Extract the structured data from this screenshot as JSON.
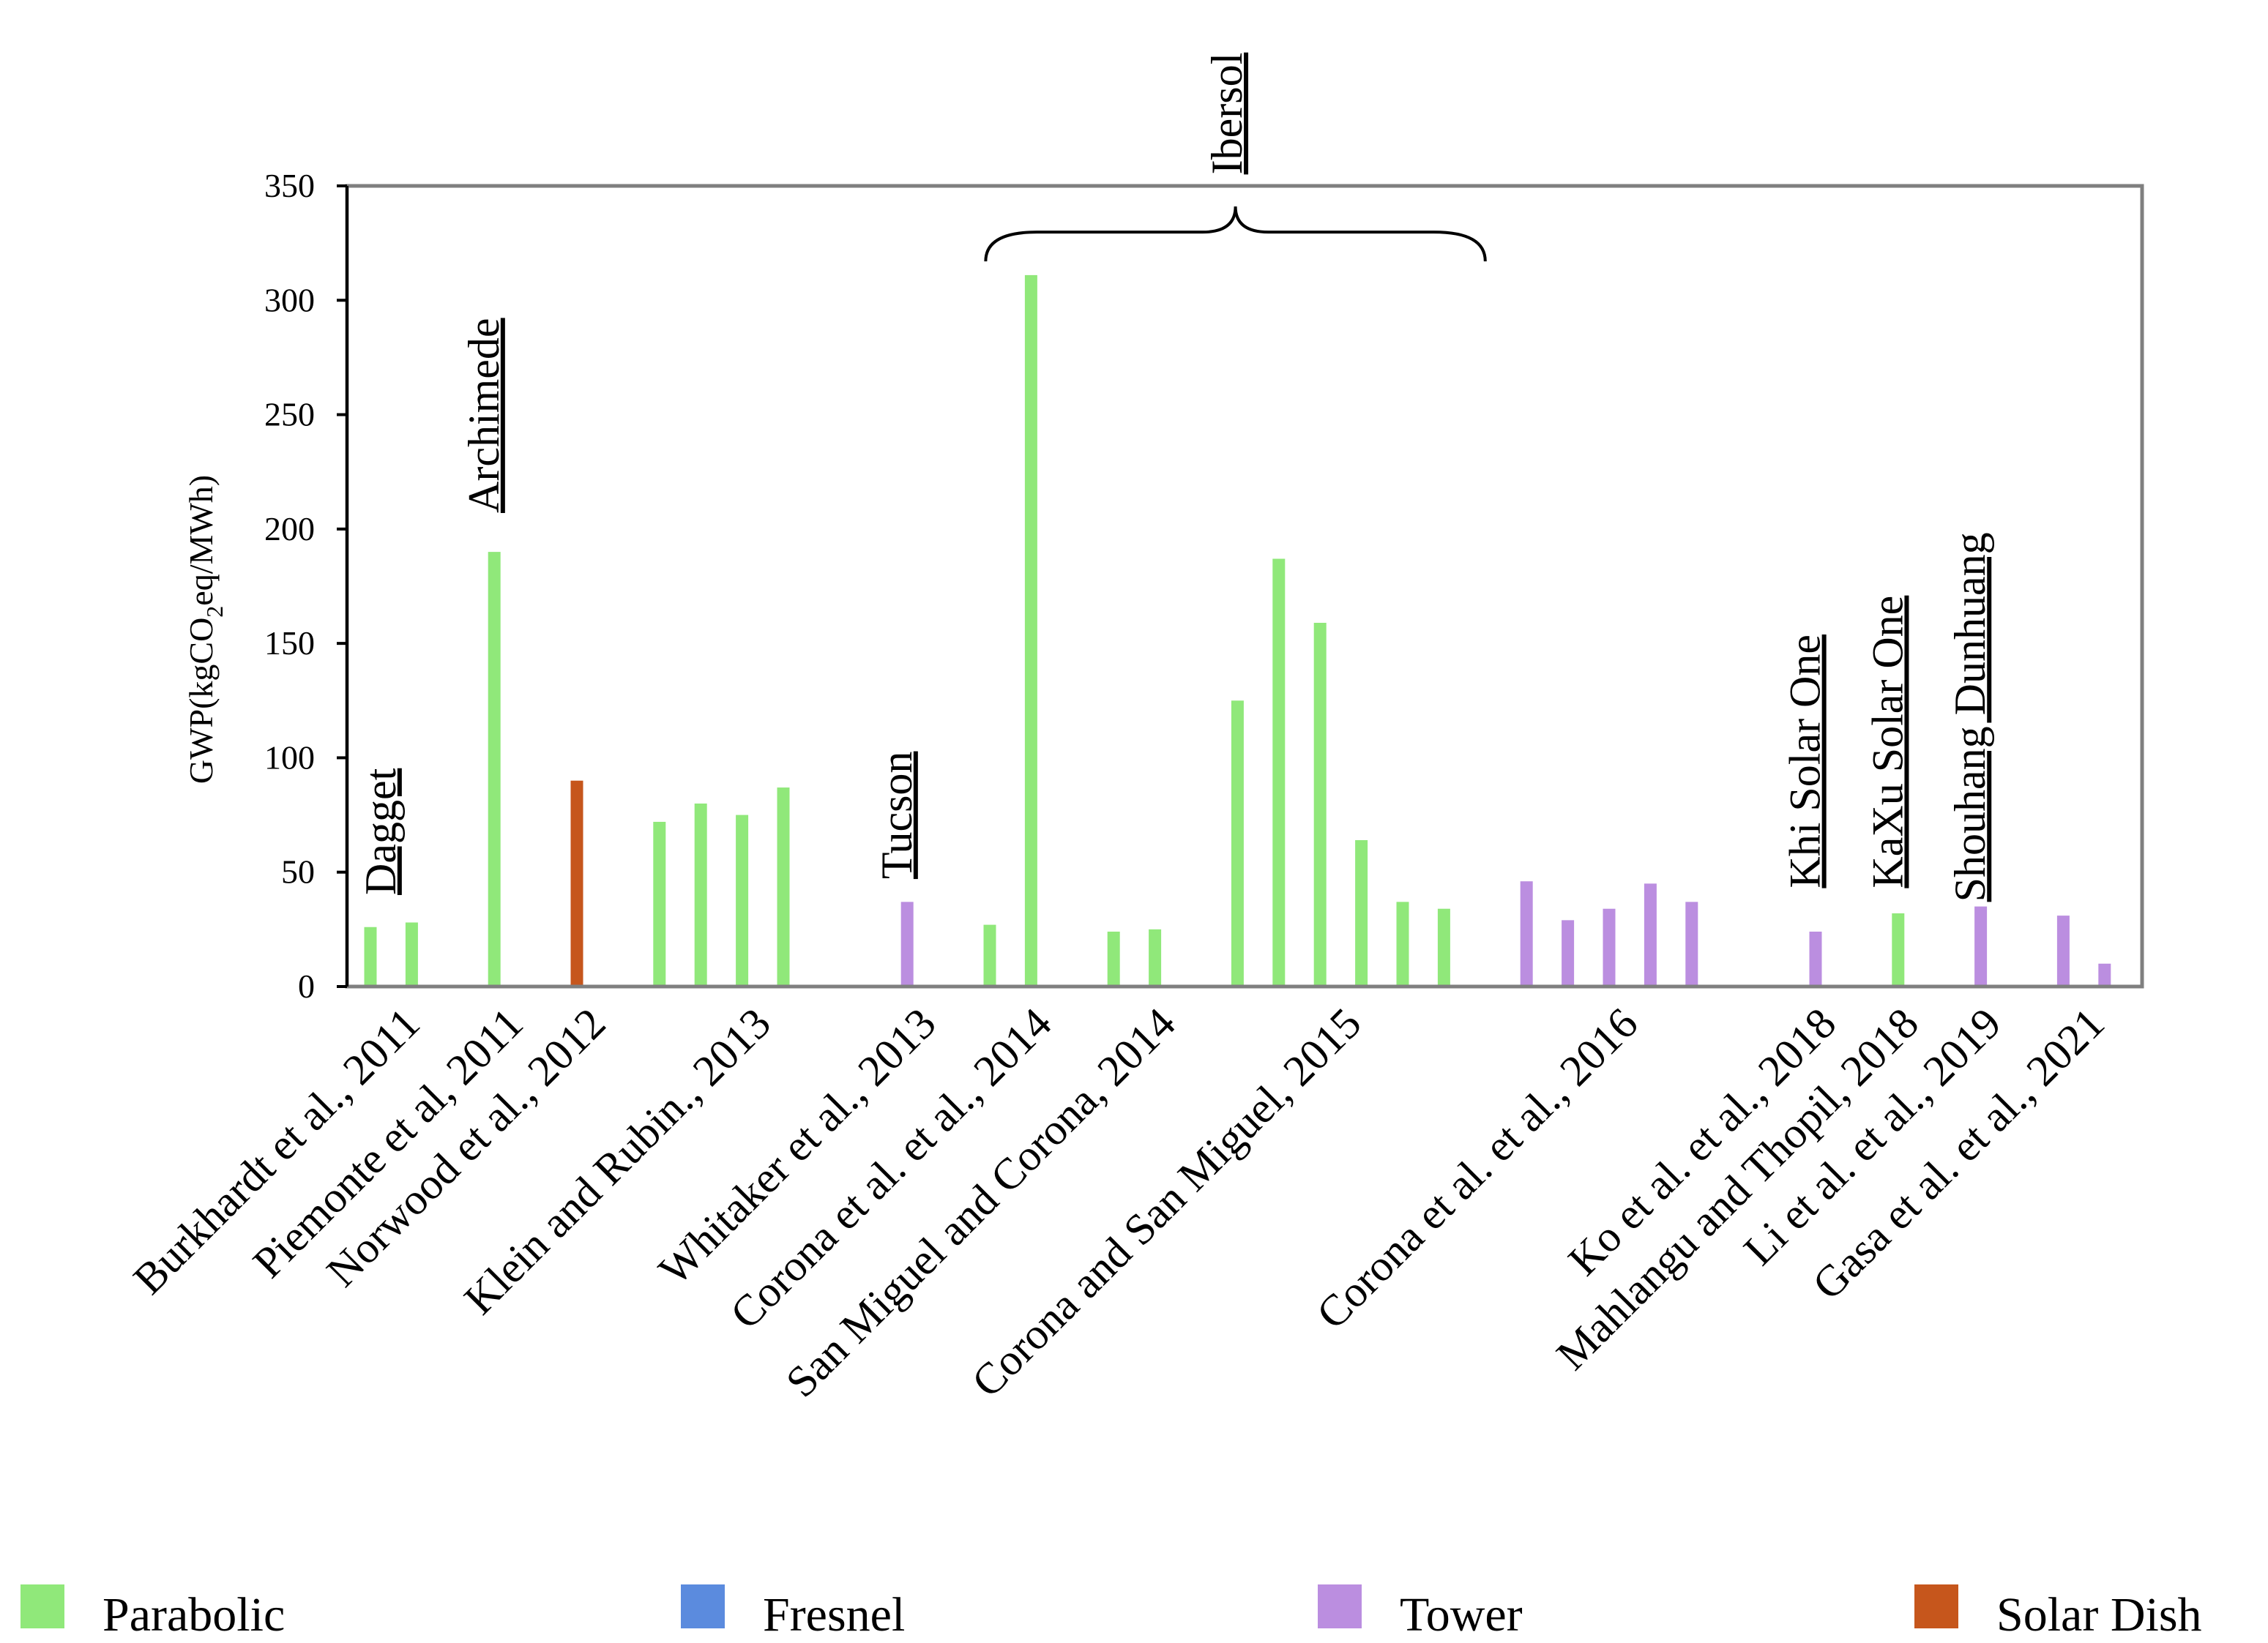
{
  "chart_data": {
    "type": "bar",
    "title": "",
    "xlabel": "",
    "ylabel": "GWP(kgCO2eq/MWh)",
    "ylabel_parts": {
      "pre": "GWP(kgCO",
      "sub": "2",
      "post": "eq/MWh)"
    },
    "ylim": [
      0,
      350
    ],
    "yticks": [
      0,
      50,
      100,
      150,
      200,
      250,
      300,
      350
    ],
    "grid": false,
    "colors": {
      "Parabolic": "#90E87A",
      "Fresnel": "#5B8BDE",
      "Tower": "#BB8EE0",
      "Solar Dish": "#C6561C",
      "axis": "#7F7F7F"
    },
    "legend": {
      "placement": "bottom",
      "entries": [
        "Parabolic",
        "Fresnel",
        "Tower",
        "Solar Dish"
      ]
    },
    "bars": [
      {
        "slot": 0,
        "value": 26,
        "type": "Parabolic"
      },
      {
        "slot": 1,
        "value": 28,
        "type": "Parabolic"
      },
      {
        "slot": 3,
        "value": 190,
        "type": "Parabolic"
      },
      {
        "slot": 5,
        "value": 90,
        "type": "Solar Dish"
      },
      {
        "slot": 7,
        "value": 72,
        "type": "Parabolic"
      },
      {
        "slot": 8,
        "value": 80,
        "type": "Parabolic"
      },
      {
        "slot": 9,
        "value": 75,
        "type": "Parabolic"
      },
      {
        "slot": 10,
        "value": 87,
        "type": "Parabolic"
      },
      {
        "slot": 13,
        "value": 37,
        "type": "Tower"
      },
      {
        "slot": 15,
        "value": 27,
        "type": "Parabolic"
      },
      {
        "slot": 16,
        "value": 311,
        "type": "Parabolic"
      },
      {
        "slot": 18,
        "value": 24,
        "type": "Parabolic"
      },
      {
        "slot": 19,
        "value": 25,
        "type": "Parabolic"
      },
      {
        "slot": 21,
        "value": 125,
        "type": "Parabolic"
      },
      {
        "slot": 22,
        "value": 187,
        "type": "Parabolic"
      },
      {
        "slot": 23,
        "value": 159,
        "type": "Parabolic"
      },
      {
        "slot": 24,
        "value": 64,
        "type": "Parabolic"
      },
      {
        "slot": 25,
        "value": 37,
        "type": "Parabolic"
      },
      {
        "slot": 26,
        "value": 34,
        "type": "Parabolic"
      },
      {
        "slot": 28,
        "value": 46,
        "type": "Tower"
      },
      {
        "slot": 29,
        "value": 29,
        "type": "Tower"
      },
      {
        "slot": 30,
        "value": 34,
        "type": "Tower"
      },
      {
        "slot": 31,
        "value": 45,
        "type": "Tower"
      },
      {
        "slot": 32,
        "value": 37,
        "type": "Tower"
      },
      {
        "slot": 35,
        "value": 24,
        "type": "Tower"
      },
      {
        "slot": 37,
        "value": 32,
        "type": "Parabolic"
      },
      {
        "slot": 39,
        "value": 35,
        "type": "Tower"
      },
      {
        "slot": 41,
        "value": 31,
        "type": "Tower"
      },
      {
        "slot": 42,
        "value": 10,
        "type": "Tower"
      }
    ],
    "categories": [
      {
        "label": "Burkhardt et al., 2011",
        "slot": 1
      },
      {
        "label": "Piemonte et al, 2011",
        "slot": 3.5
      },
      {
        "label": "Norwood et al., 2012",
        "slot": 5.5
      },
      {
        "label": "Klein and Rubin., 2013",
        "slot": 9.5
      },
      {
        "label": "Whitaker et al., 2013",
        "slot": 13.5
      },
      {
        "label": "Corona et al. et al., 2014",
        "slot": 16.3
      },
      {
        "label": "San Miguel and Corona, 2014",
        "slot": 19.3
      },
      {
        "label": "Corona and San Miguel, 2015",
        "slot": 23.8
      },
      {
        "label": "Corona et al. et al., 2016",
        "slot": 30.5
      },
      {
        "label": "Ko et al. et al., 2018",
        "slot": 35.3
      },
      {
        "label": "Mahlangu and Thopil, 2018",
        "slot": 37.3
      },
      {
        "label": "Li et al. et al., 2019",
        "slot": 39.3
      },
      {
        "label": "Gasa et al. et al., 2021",
        "slot": 41.8
      }
    ],
    "annotations": [
      {
        "text": "Dagget",
        "slot": 0.6,
        "value": 40
      },
      {
        "text": "Archimede",
        "slot": 3.1,
        "value": 207
      },
      {
        "text": "Tucson",
        "slot": 13.1,
        "value": 47
      },
      {
        "text": "Ibersol",
        "slot": 21.1,
        "value": 355,
        "brace": {
          "from_slot": 14.9,
          "to_slot": 27.0,
          "value": 317
        }
      },
      {
        "text": "Khi Solar One",
        "slot": 35.1,
        "value": 43
      },
      {
        "text": "KaXu Solar One",
        "slot": 37.1,
        "value": 43
      },
      {
        "text": "Shouhang Dunhuang",
        "slot": 39.1,
        "value": 37
      }
    ]
  }
}
